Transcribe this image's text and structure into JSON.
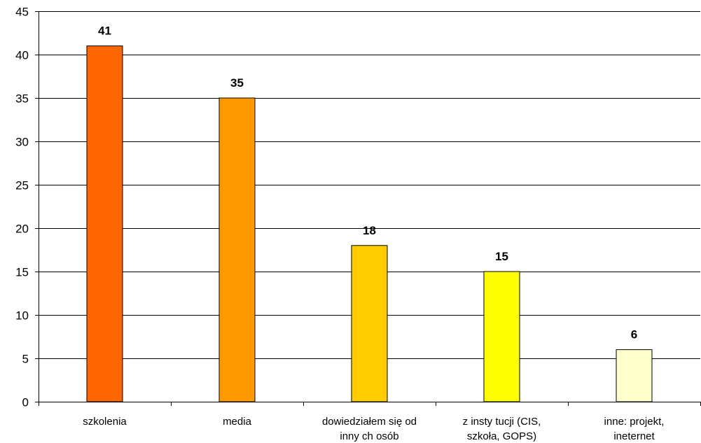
{
  "chart_data": {
    "type": "bar",
    "categories": [
      [
        "szkolenia"
      ],
      [
        "media"
      ],
      [
        "dowiedziałem się od",
        "inny ch osób"
      ],
      [
        "z insty tucji (CIS,",
        "szkoła, GOPS)"
      ],
      [
        "inne: projekt,",
        "ineternet"
      ]
    ],
    "values": [
      41,
      35,
      18,
      15,
      6
    ],
    "data_labels": [
      "41",
      "35",
      "18",
      "15",
      "6"
    ],
    "bar_colors": [
      "#FF6600",
      "#FF9900",
      "#FFCC00",
      "#FFFF00",
      "#FFFFCC"
    ],
    "title": "",
    "xlabel": "",
    "ylabel": "",
    "ylim": [
      0,
      45
    ],
    "yticks": [
      0,
      5,
      10,
      15,
      20,
      25,
      30,
      35,
      40,
      45
    ],
    "grid": true,
    "legend": "none"
  }
}
